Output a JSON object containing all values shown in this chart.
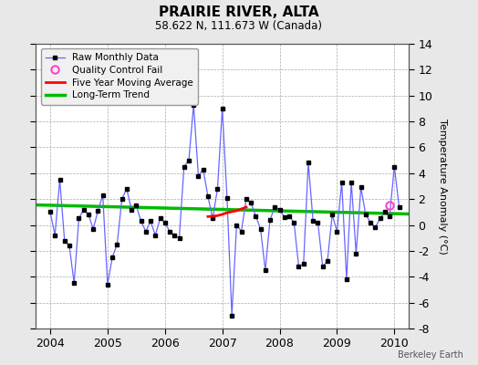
{
  "title": "PRAIRIE RIVER, ALTA",
  "subtitle": "58.622 N, 111.673 W (Canada)",
  "ylabel": "Temperature Anomaly (°C)",
  "watermark": "Berkeley Earth",
  "ylim": [
    -8,
    14
  ],
  "yticks": [
    -8,
    -6,
    -4,
    -2,
    0,
    2,
    4,
    6,
    8,
    10,
    12,
    14
  ],
  "xlim": [
    2003.75,
    2010.25
  ],
  "xticks": [
    2004,
    2005,
    2006,
    2007,
    2008,
    2009,
    2010
  ],
  "background_color": "#e8e8e8",
  "plot_bg_color": "#ffffff",
  "raw_data": {
    "x": [
      2004.0,
      2004.083,
      2004.167,
      2004.25,
      2004.333,
      2004.417,
      2004.5,
      2004.583,
      2004.667,
      2004.75,
      2004.833,
      2004.917,
      2005.0,
      2005.083,
      2005.167,
      2005.25,
      2005.333,
      2005.417,
      2005.5,
      2005.583,
      2005.667,
      2005.75,
      2005.833,
      2005.917,
      2006.0,
      2006.083,
      2006.167,
      2006.25,
      2006.333,
      2006.417,
      2006.5,
      2006.583,
      2006.667,
      2006.75,
      2006.833,
      2006.917,
      2007.0,
      2007.083,
      2007.167,
      2007.25,
      2007.333,
      2007.417,
      2007.5,
      2007.583,
      2007.667,
      2007.75,
      2007.833,
      2007.917,
      2008.0,
      2008.083,
      2008.167,
      2008.25,
      2008.333,
      2008.417,
      2008.5,
      2008.583,
      2008.667,
      2008.75,
      2008.833,
      2008.917,
      2009.0,
      2009.083,
      2009.167,
      2009.25,
      2009.333,
      2009.417,
      2009.5,
      2009.583,
      2009.667,
      2009.75,
      2009.833,
      2009.917,
      2010.0,
      2010.083
    ],
    "y": [
      1.0,
      -0.8,
      3.5,
      -1.2,
      -1.6,
      -4.5,
      0.5,
      1.2,
      0.8,
      -0.3,
      1.1,
      2.3,
      -4.6,
      -2.5,
      -1.5,
      2.0,
      2.8,
      1.2,
      1.5,
      0.3,
      -0.5,
      0.3,
      -0.8,
      0.5,
      0.2,
      -0.5,
      -0.8,
      -1.0,
      4.5,
      5.0,
      9.3,
      3.8,
      4.3,
      2.2,
      0.5,
      2.8,
      9.0,
      2.1,
      -7.0,
      0.0,
      -0.5,
      2.0,
      1.7,
      0.7,
      -0.3,
      -3.5,
      0.4,
      1.4,
      1.2,
      0.6,
      0.7,
      0.2,
      -3.2,
      -3.0,
      4.8,
      0.3,
      0.2,
      -3.2,
      -2.8,
      0.8,
      -0.5,
      3.3,
      -4.2,
      3.3,
      -2.2,
      2.9,
      0.8,
      0.2,
      -0.2,
      0.5,
      1.0,
      0.7,
      4.5,
      1.4
    ]
  },
  "qc_fail": {
    "x": [
      2009.917
    ],
    "y": [
      1.5
    ]
  },
  "five_year_ma": {
    "x": [
      2006.75,
      2006.917,
      2007.0,
      2007.083,
      2007.25,
      2007.417
    ],
    "y": [
      0.65,
      0.72,
      0.82,
      0.95,
      1.1,
      1.38
    ]
  },
  "long_term_trend": {
    "x": [
      2003.75,
      2010.25
    ],
    "y": [
      1.55,
      0.85
    ]
  },
  "line_color": "#6666ff",
  "marker_color": "#000000",
  "ma_color": "#ff0000",
  "trend_color": "#00bb00",
  "qc_color": "#ff44cc"
}
